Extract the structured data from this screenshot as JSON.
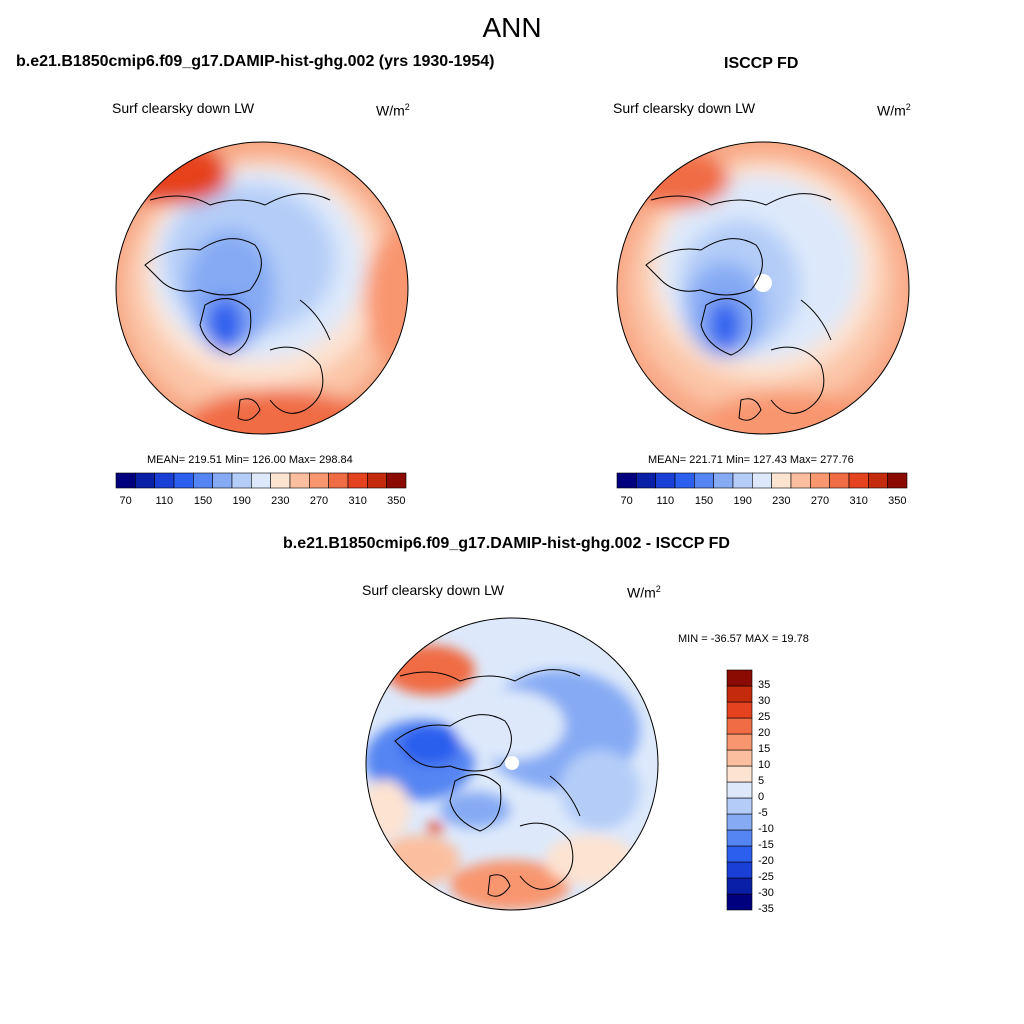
{
  "figure": {
    "title": "ANN"
  },
  "panels": {
    "model": {
      "title": "b.e21.B1850cmip6.f09_g17.DAMIP-hist-ghg.002 (yrs 1930-1954)",
      "variable": "Surf clearsky down LW",
      "units_base": "W/m",
      "units_exp": "2",
      "stats": "MEAN= 219.51  Min= 126.00  Max= 298.84"
    },
    "obs": {
      "title": "ISCCP FD",
      "variable": "Surf clearsky down LW",
      "units_base": "W/m",
      "units_exp": "2",
      "stats": "MEAN= 221.71  Min= 127.43  Max= 277.76"
    },
    "diff": {
      "title": "b.e21.B1850cmip6.f09_g17.DAMIP-hist-ghg.002 - ISCCP FD",
      "variable": "Surf clearsky down LW",
      "units_base": "W/m",
      "units_exp": "2",
      "stats": "MIN = -36.57 MAX =  19.78"
    }
  },
  "colorbars": {
    "field": {
      "colors": [
        "#00007f",
        "#0a1fa8",
        "#1a3fd6",
        "#2c5fee",
        "#5585f2",
        "#86aaf4",
        "#b4cdf8",
        "#dde9fb",
        "#fde3d2",
        "#fbbf9f",
        "#f8966f",
        "#f06c45",
        "#e5431f",
        "#c42b0c",
        "#8b0a02"
      ],
      "tick_labels": [
        "70",
        "110",
        "150",
        "190",
        "230",
        "270",
        "310",
        "350"
      ]
    },
    "diff": {
      "colors": [
        "#00007f",
        "#0a1fa8",
        "#1a3fd6",
        "#2c5fee",
        "#5585f2",
        "#86aaf4",
        "#b4cdf8",
        "#dde9fb",
        "#fde3d2",
        "#fbbf9f",
        "#f8966f",
        "#f06c45",
        "#e5431f",
        "#c42b0c",
        "#8b0a02"
      ],
      "tick_labels": [
        "35",
        "30",
        "25",
        "20",
        "15",
        "10",
        "5",
        "0",
        "-5",
        "-10",
        "-15",
        "-20",
        "-25",
        "-30",
        "-35"
      ]
    }
  }
}
